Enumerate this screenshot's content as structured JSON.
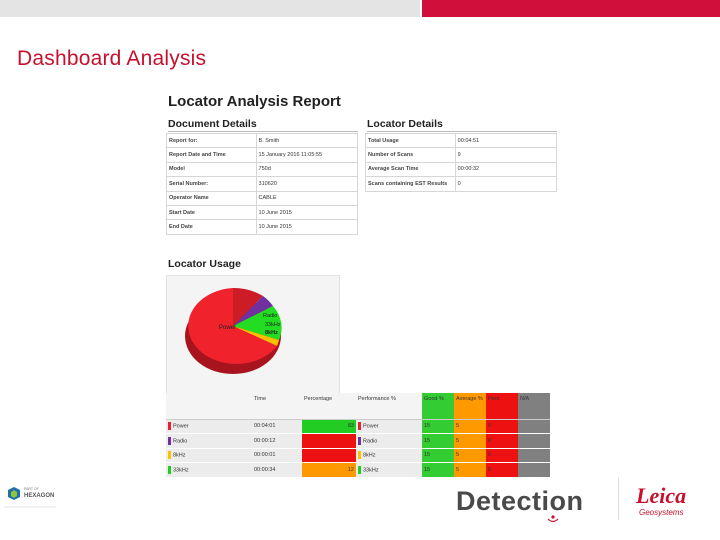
{
  "slide": {
    "title": "Dashboard Analysis"
  },
  "report": {
    "title": "Locator Analysis Report",
    "document_details": {
      "heading": "Document Details",
      "rows": [
        {
          "label": "Report for:",
          "value": "B. Smith"
        },
        {
          "label": "Report Date and Time",
          "value": "15 January 2016 11:05:55"
        },
        {
          "label": "Model",
          "value": "750d"
        },
        {
          "label": "Serial Number:",
          "value": "310620"
        },
        {
          "label": "Operator Name",
          "value": "CABLE"
        },
        {
          "label": "Start Date",
          "value": "10 June 2015"
        },
        {
          "label": "End Date",
          "value": "10 June 2015"
        }
      ]
    },
    "locator_details": {
      "heading": "Locator Details",
      "rows": [
        {
          "label": "Total Usage",
          "value": "00:04:51"
        },
        {
          "label": "Number of Scans",
          "value": "9"
        },
        {
          "label": "Average Scan Time",
          "value": "00:00:32"
        },
        {
          "label": "Scans containing EST Results",
          "value": "0"
        }
      ]
    },
    "locator_usage": {
      "heading": "Locator Usage",
      "pie_labels": {
        "power": "Power",
        "radio": "Radio",
        "33k": "33kHz",
        "8k": "8kHz"
      },
      "columns": [
        "",
        "Time",
        "Percentage",
        "Performance %",
        "Good %",
        "Average %",
        "Poor",
        "N/A"
      ],
      "rows": [
        {
          "name": "Power",
          "time": "00:04:01",
          "pct": "83",
          "perf": "Power",
          "good": "15",
          "avg": "5",
          "poor": "0",
          "color": "#e8232f",
          "pct_bg": "#22cc22"
        },
        {
          "name": "Radio",
          "time": "00:00:12",
          "pct": "",
          "perf": "Radio",
          "good": "15",
          "avg": "5",
          "poor": "0",
          "color": "#7030a0",
          "pct_bg": "#ee1111"
        },
        {
          "name": "8kHz",
          "time": "00:00:01",
          "pct": "",
          "perf": "8kHz",
          "good": "15",
          "avg": "5",
          "poor": "0",
          "color": "#ffc000",
          "pct_bg": "#ee1111"
        },
        {
          "name": "33kHz",
          "time": "00:00:34",
          "pct": "12",
          "perf": "33kHz",
          "good": "15",
          "avg": "5",
          "poor": "0",
          "color": "#22cc22",
          "pct_bg": "#ff9900"
        }
      ]
    }
  },
  "footer": {
    "hexagon_small": "PART OF",
    "hexagon_brand": "HEXAGON",
    "detection_brand": "Detection",
    "leica_brand": "Leica",
    "leica_sub": "Geosystems"
  },
  "colors": {
    "brand_red": "#d0103a",
    "good_green": "#33cc33",
    "average_orange": "#ff9900",
    "poor_red": "#ee1111",
    "na_grey": "#808080"
  }
}
